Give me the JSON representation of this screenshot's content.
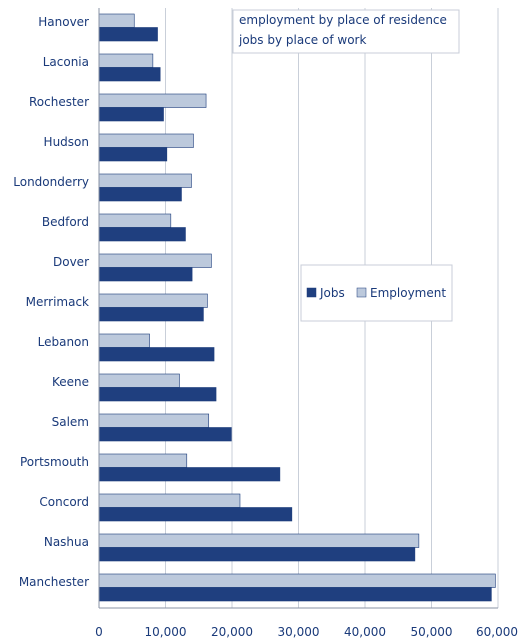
{
  "chart_data": {
    "type": "bar",
    "orientation": "horizontal",
    "categories": [
      "Hanover",
      "Laconia",
      "Rochester",
      "Hudson",
      "Londonderry",
      "Bedford",
      "Dover",
      "Merrimack",
      "Lebanon",
      "Keene",
      "Salem",
      "Portsmouth",
      "Concord",
      "Nashua",
      "Manchester"
    ],
    "series": [
      {
        "name": "Jobs",
        "color": "#1f3f7f",
        "values": [
          8800,
          9200,
          9700,
          10200,
          12400,
          13000,
          14000,
          15700,
          17300,
          17600,
          19900,
          27200,
          29000,
          47500,
          59000
        ]
      },
      {
        "name": "Employment",
        "color": "#bcc9dc",
        "values": [
          5300,
          8100,
          16100,
          14200,
          13900,
          10800,
          16900,
          16300,
          7600,
          12100,
          16500,
          13200,
          21200,
          48100,
          59600
        ]
      }
    ],
    "xlim": [
      0,
      60000
    ],
    "xticks": [
      "0",
      "10,000",
      "20,000",
      "30,000",
      "40,000",
      "50,000",
      "60,000"
    ],
    "xtick_values": [
      0,
      10000,
      20000,
      30000,
      40000,
      50000,
      60000
    ],
    "grid": true,
    "legend_placement": "center-right",
    "annotation_lines": [
      "employment by place of residence",
      "jobs by place of work"
    ]
  }
}
